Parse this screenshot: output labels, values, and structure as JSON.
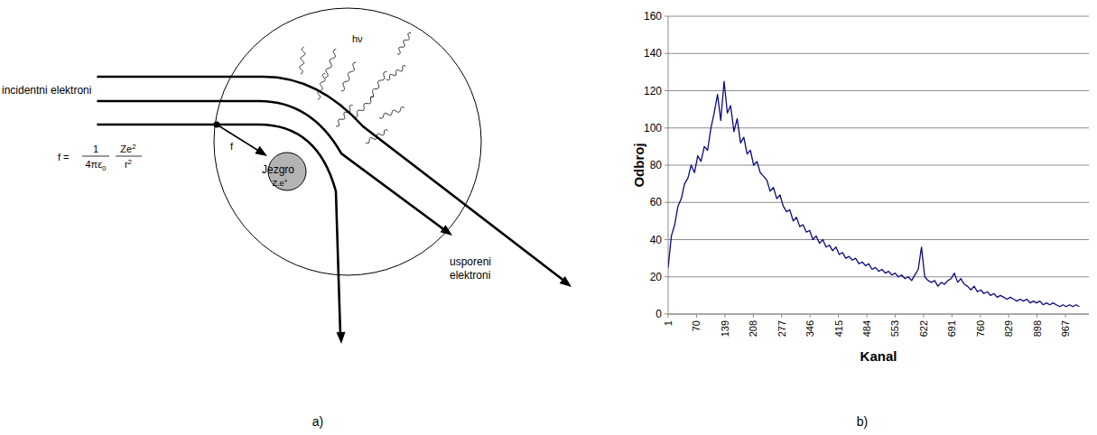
{
  "diagram": {
    "incident_label": "incidentni elektroni",
    "formula": {
      "lhs": "f =",
      "numerator": "1",
      "denominator": "4πε",
      "denominator_sub": "0",
      "fraction2_numerator": "Ze",
      "numerator_sup": "2",
      "fraction2_denominator": "r",
      "denominator_sup": "2"
    },
    "force_label": "f",
    "nucleus_label": "Jezgro",
    "nucleus_charge": "Z.e",
    "nucleus_charge_sup": "+",
    "photon_label": "hν",
    "scattered_label": [
      "usporeni",
      "elektroni"
    ],
    "caption": "a)"
  },
  "chart_data": {
    "type": "line",
    "x_label": "Kanal",
    "y_label": "Odbroj",
    "color": "#0a0a80",
    "x": [
      1,
      9,
      17,
      25,
      33,
      41,
      49,
      57,
      65,
      73,
      81,
      89,
      97,
      105,
      113,
      121,
      129,
      137,
      145,
      153,
      161,
      169,
      177,
      185,
      193,
      201,
      209,
      217,
      225,
      233,
      241,
      249,
      257,
      265,
      273,
      281,
      289,
      297,
      305,
      313,
      321,
      329,
      337,
      345,
      353,
      361,
      369,
      377,
      385,
      393,
      401,
      409,
      417,
      425,
      433,
      441,
      449,
      457,
      465,
      473,
      481,
      489,
      497,
      505,
      513,
      521,
      529,
      537,
      545,
      553,
      561,
      569,
      577,
      585,
      593,
      601,
      609,
      617,
      625,
      633,
      641,
      649,
      657,
      665,
      673,
      681,
      689,
      697,
      705,
      713,
      721,
      729,
      737,
      745,
      753,
      761,
      769,
      777,
      785,
      793,
      801,
      809,
      817,
      825,
      833,
      841,
      849,
      857,
      865,
      873,
      881,
      889,
      897,
      905,
      913,
      921,
      929,
      937,
      945,
      953,
      961,
      969,
      977,
      985,
      993,
      1001
    ],
    "values": [
      25,
      42,
      48,
      58,
      62,
      70,
      73,
      80,
      76,
      85,
      82,
      90,
      88,
      100,
      108,
      118,
      104,
      125,
      108,
      112,
      98,
      105,
      92,
      95,
      86,
      88,
      80,
      82,
      76,
      74,
      72,
      66,
      68,
      62,
      64,
      58,
      55,
      56,
      50,
      52,
      47,
      48,
      44,
      45,
      40,
      42,
      38,
      40,
      36,
      37,
      34,
      36,
      32,
      33,
      30,
      31,
      29,
      30,
      27,
      28,
      26,
      27,
      24,
      25,
      23,
      24,
      22,
      23,
      21,
      22,
      20,
      21,
      19,
      20,
      18,
      21,
      24,
      36,
      20,
      18,
      17,
      18,
      15,
      17,
      16,
      18,
      19,
      22,
      17,
      19,
      16,
      15,
      13,
      15,
      12,
      13,
      11,
      12,
      10,
      11,
      9,
      10,
      9,
      8,
      9,
      8,
      7,
      8,
      7,
      8,
      6,
      7,
      6,
      7,
      5,
      6,
      5,
      6,
      5,
      4,
      5,
      4,
      5,
      4,
      5,
      4
    ],
    "xlim": [
      1,
      1024
    ],
    "xticks": [
      1,
      70,
      139,
      208,
      277,
      346,
      415,
      484,
      553,
      622,
      691,
      760,
      829,
      898,
      967
    ],
    "ylim": [
      0,
      160
    ],
    "yticks": [
      0,
      20,
      40,
      60,
      80,
      100,
      120,
      140,
      160
    ],
    "grid": true,
    "caption": "b)"
  }
}
